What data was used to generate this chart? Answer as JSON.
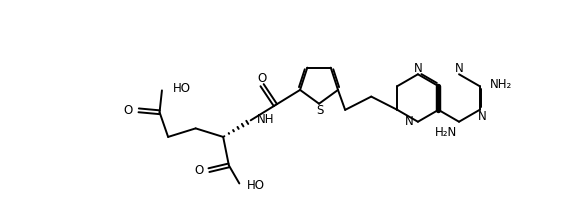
{
  "bg_color": "#ffffff",
  "line_color": "#000000",
  "bond_width": 1.4,
  "font_size": 8.5,
  "fig_width": 5.7,
  "fig_height": 2.15,
  "dpi": 100,
  "xlim": [
    0,
    11.5
  ],
  "ylim": [
    -1.5,
    3.0
  ]
}
